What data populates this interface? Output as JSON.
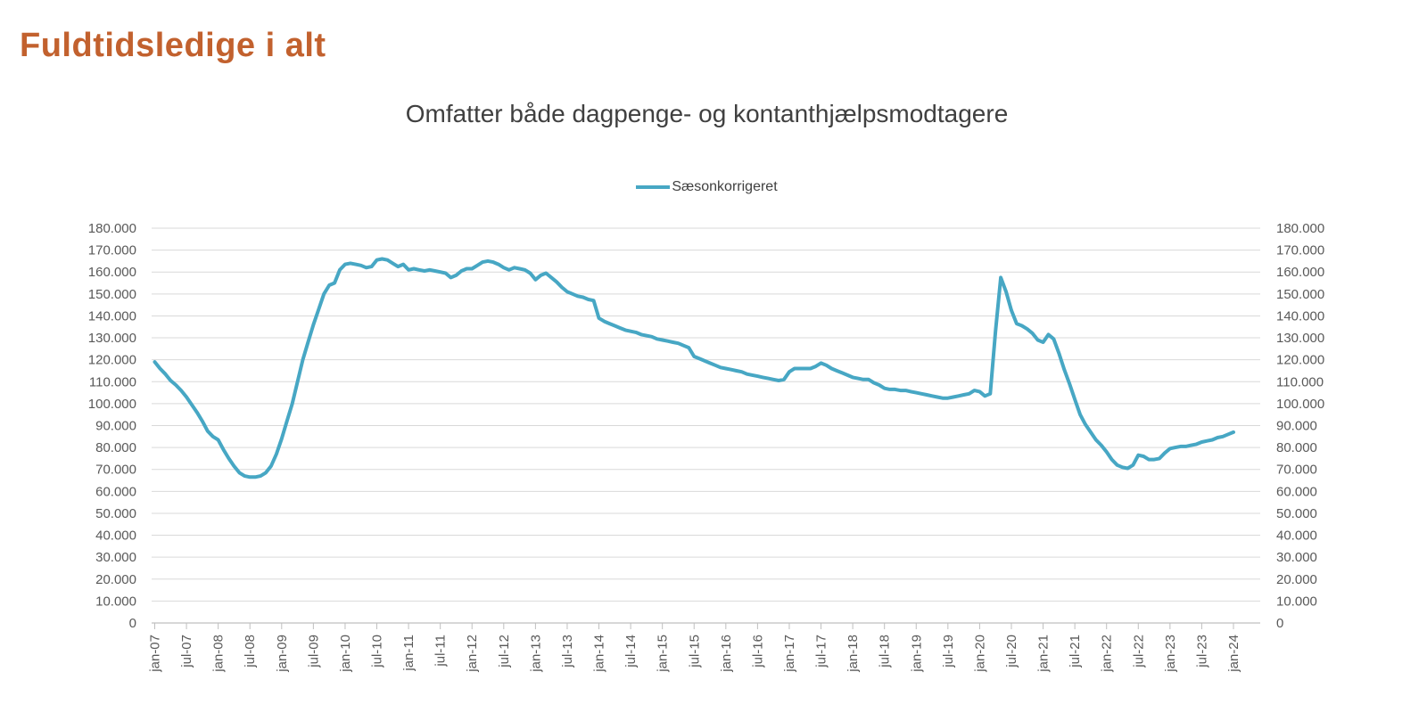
{
  "page": {
    "title": "Fuldtidsledige i alt"
  },
  "chart": {
    "subtitle": "Omfatter både dagpenge- og kontanthjælpsmodtagere",
    "legend_label": "Sæsonkorrigeret",
    "colors": {
      "title": "#c2612e",
      "series_line": "#47a7c4",
      "subtitle_text": "#404040",
      "axis_labels": "#595959",
      "gridlines": "#d9d9d9",
      "axis_line": "#bfbfbf"
    }
  },
  "chart_data": {
    "type": "line",
    "title": "Fuldtidsledige i alt",
    "subtitle": "Omfatter både dagpenge- og kontanthjælpsmodtagere",
    "legend_position": "top",
    "grid": "horizontal",
    "x_unit": "month",
    "x_start": "jan-07",
    "x_end": "jan-24",
    "x_tick_every_months": 6,
    "x_tick_labels": [
      "jan-07",
      "jul-07",
      "jan-08",
      "jul-08",
      "jan-09",
      "jul-09",
      "jan-10",
      "jul-10",
      "jan-11",
      "jul-11",
      "jan-12",
      "jul-12",
      "jan-13",
      "jul-13",
      "jan-14",
      "jul-14",
      "jan-15",
      "jul-15",
      "jan-16",
      "jul-16",
      "jan-17",
      "jul-17",
      "jan-18",
      "jul-18",
      "jan-19",
      "jul-19",
      "jan-20",
      "jul-20",
      "jan-21",
      "jul-21",
      "jan-22",
      "jul-22",
      "jan-23",
      "jul-23",
      "jan-24"
    ],
    "ylim": [
      0,
      180000
    ],
    "y_tick_step": 10000,
    "y_tick_labels": [
      "0",
      "10.000",
      "20.000",
      "30.000",
      "40.000",
      "50.000",
      "60.000",
      "70.000",
      "80.000",
      "90.000",
      "100.000",
      "110.000",
      "120.000",
      "130.000",
      "140.000",
      "150.000",
      "160.000",
      "170.000",
      "180.000"
    ],
    "y_axis_sides": [
      "left",
      "right"
    ],
    "series": [
      {
        "name": "Sæsonkorrigeret",
        "color": "#47a7c4",
        "values": [
          119000,
          116000,
          113500,
          110500,
          108500,
          106000,
          103000,
          99500,
          96000,
          92000,
          87500,
          85000,
          83500,
          79000,
          75000,
          71500,
          68500,
          67000,
          66500,
          66500,
          67000,
          68500,
          71500,
          77000,
          84000,
          92000,
          100000,
          110000,
          120000,
          128000,
          136000,
          143000,
          150000,
          154000,
          155000,
          161000,
          163500,
          164000,
          163500,
          163000,
          162000,
          162500,
          165500,
          166000,
          165500,
          164000,
          162500,
          163500,
          161000,
          161500,
          161000,
          160500,
          161000,
          160500,
          160000,
          159500,
          157500,
          158500,
          160500,
          161500,
          161500,
          163000,
          164500,
          165000,
          164500,
          163500,
          162000,
          161000,
          162000,
          161500,
          161000,
          159500,
          156500,
          158500,
          159500,
          157500,
          155500,
          153000,
          151000,
          150000,
          149000,
          148500,
          147500,
          147000,
          139000,
          137500,
          136500,
          135500,
          134500,
          133500,
          133000,
          132500,
          131500,
          131000,
          130500,
          129500,
          129000,
          128500,
          128000,
          127500,
          126500,
          125500,
          121500,
          120500,
          119500,
          118500,
          117500,
          116500,
          116000,
          115500,
          115000,
          114500,
          113500,
          113000,
          112500,
          112000,
          111500,
          111000,
          110500,
          111000,
          114500,
          116000,
          116000,
          116000,
          116000,
          117000,
          118500,
          117500,
          116000,
          115000,
          114000,
          113000,
          112000,
          111500,
          111000,
          111000,
          109500,
          108500,
          107000,
          106500,
          106500,
          106000,
          106000,
          105500,
          105000,
          104500,
          104000,
          103500,
          103000,
          102500,
          102500,
          103000,
          103500,
          104000,
          104500,
          106000,
          105500,
          103500,
          104500,
          133000,
          157500,
          151000,
          142500,
          136500,
          135500,
          134000,
          132000,
          129000,
          128000,
          131500,
          129500,
          123000,
          115500,
          109000,
          102000,
          95000,
          90500,
          87000,
          83500,
          81000,
          78000,
          74500,
          72000,
          71000,
          70500,
          72000,
          76500,
          76000,
          74500,
          74500,
          75000,
          77500,
          79500,
          80000,
          80500,
          80500,
          81000,
          81500,
          82500,
          83000,
          83500,
          84500,
          85000,
          86000,
          87000
        ]
      }
    ]
  }
}
